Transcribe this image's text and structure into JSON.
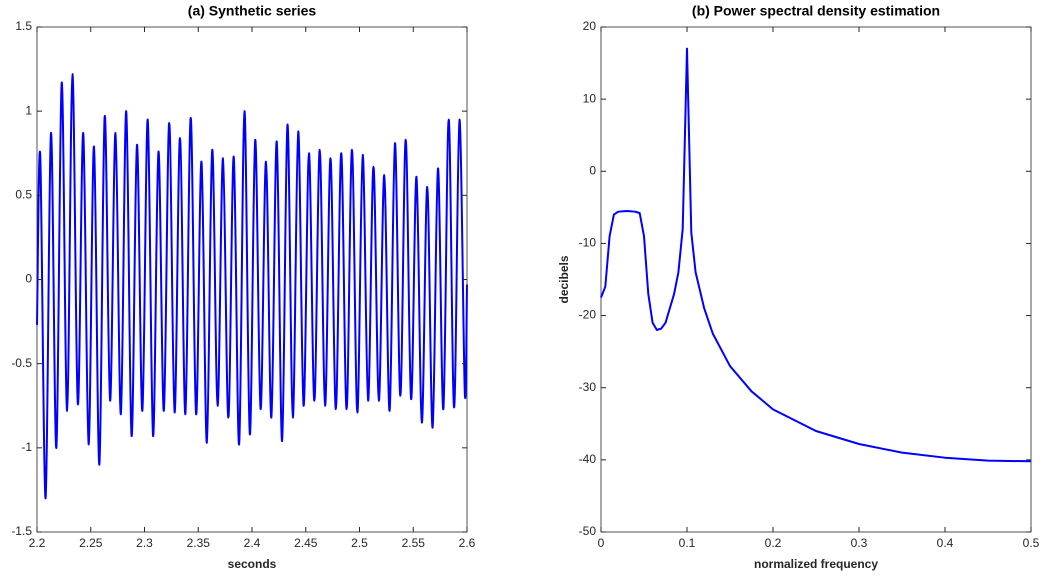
{
  "chart_data": [
    {
      "type": "line",
      "title": "(a)  Synthetic series",
      "xlabel": "seconds",
      "color": "#0000ff",
      "smooth": true,
      "xlim": [
        2.2,
        2.6
      ],
      "xticks": [
        2.2,
        2.25,
        2.3,
        2.35,
        2.4,
        2.45,
        2.5,
        2.55,
        2.6
      ],
      "ylim": [
        -1.5,
        1.5
      ],
      "yticks": [
        -1.5,
        -1,
        -0.5,
        0,
        0.5,
        1,
        1.5
      ],
      "x": [
        2.2,
        2.203,
        2.208,
        2.213,
        2.218,
        2.223,
        2.228,
        2.233,
        2.238,
        2.243,
        2.248,
        2.253,
        2.258,
        2.263,
        2.268,
        2.273,
        2.278,
        2.283,
        2.288,
        2.293,
        2.298,
        2.303,
        2.308,
        2.313,
        2.318,
        2.323,
        2.328,
        2.333,
        2.338,
        2.343,
        2.348,
        2.353,
        2.358,
        2.363,
        2.368,
        2.373,
        2.378,
        2.383,
        2.388,
        2.393,
        2.398,
        2.403,
        2.408,
        2.413,
        2.418,
        2.423,
        2.428,
        2.433,
        2.438,
        2.443,
        2.448,
        2.453,
        2.458,
        2.463,
        2.468,
        2.473,
        2.478,
        2.483,
        2.488,
        2.493,
        2.498,
        2.503,
        2.508,
        2.513,
        2.518,
        2.523,
        2.528,
        2.533,
        2.538,
        2.543,
        2.548,
        2.553,
        2.558,
        2.563,
        2.568,
        2.573,
        2.578,
        2.583,
        2.588,
        2.593,
        2.598,
        2.6
      ],
      "values": [
        -0.27,
        0.74,
        -1.3,
        0.87,
        -1.0,
        1.17,
        -0.78,
        1.22,
        -0.74,
        0.87,
        -0.98,
        0.79,
        -1.1,
        0.97,
        -0.72,
        0.87,
        -0.8,
        1.0,
        -0.93,
        0.8,
        -0.78,
        0.95,
        -0.93,
        0.76,
        -0.78,
        0.93,
        -0.79,
        0.84,
        -0.8,
        0.96,
        -0.8,
        0.7,
        -0.97,
        0.77,
        -0.75,
        0.72,
        -0.82,
        0.73,
        -0.98,
        1.0,
        -0.92,
        0.83,
        -0.77,
        0.7,
        -0.82,
        0.82,
        -0.96,
        0.92,
        -0.82,
        0.88,
        -0.75,
        0.75,
        -0.72,
        0.77,
        -0.75,
        0.72,
        -0.77,
        0.75,
        -0.77,
        0.77,
        -0.79,
        0.74,
        -0.72,
        0.67,
        -0.72,
        0.62,
        -0.78,
        0.81,
        -0.69,
        0.83,
        -0.71,
        0.61,
        -0.85,
        0.55,
        -0.88,
        0.66,
        -0.77,
        0.95,
        -0.76,
        0.95,
        -0.68,
        -0.03
      ]
    },
    {
      "type": "line",
      "title": "(b)  Power spectral density estimation",
      "xlabel": "normalized frequency",
      "ylabel": "decibels",
      "color": "#0000ff",
      "smooth": false,
      "xlim": [
        0,
        0.5
      ],
      "xticks": [
        0,
        0.1,
        0.2,
        0.3,
        0.4,
        0.5
      ],
      "ylim": [
        -50,
        20
      ],
      "yticks": [
        -50,
        -40,
        -30,
        -20,
        -10,
        0,
        10,
        20
      ],
      "x": [
        0,
        0.005,
        0.01,
        0.015,
        0.02,
        0.03,
        0.04,
        0.045,
        0.05,
        0.055,
        0.06,
        0.065,
        0.07,
        0.075,
        0.08,
        0.085,
        0.09,
        0.095,
        0.1,
        0.105,
        0.11,
        0.12,
        0.13,
        0.15,
        0.175,
        0.2,
        0.25,
        0.3,
        0.35,
        0.4,
        0.45,
        0.5
      ],
      "values": [
        -17.5,
        -16,
        -9,
        -6,
        -5.6,
        -5.5,
        -5.6,
        -5.8,
        -9,
        -17,
        -21,
        -22,
        -21.8,
        -21,
        -19,
        -17,
        -14,
        -8,
        17,
        -8.5,
        -14,
        -19,
        -22.5,
        -27,
        -30.5,
        -33,
        -36,
        -37.8,
        -39,
        -39.7,
        -40.1,
        -40.2
      ]
    }
  ]
}
